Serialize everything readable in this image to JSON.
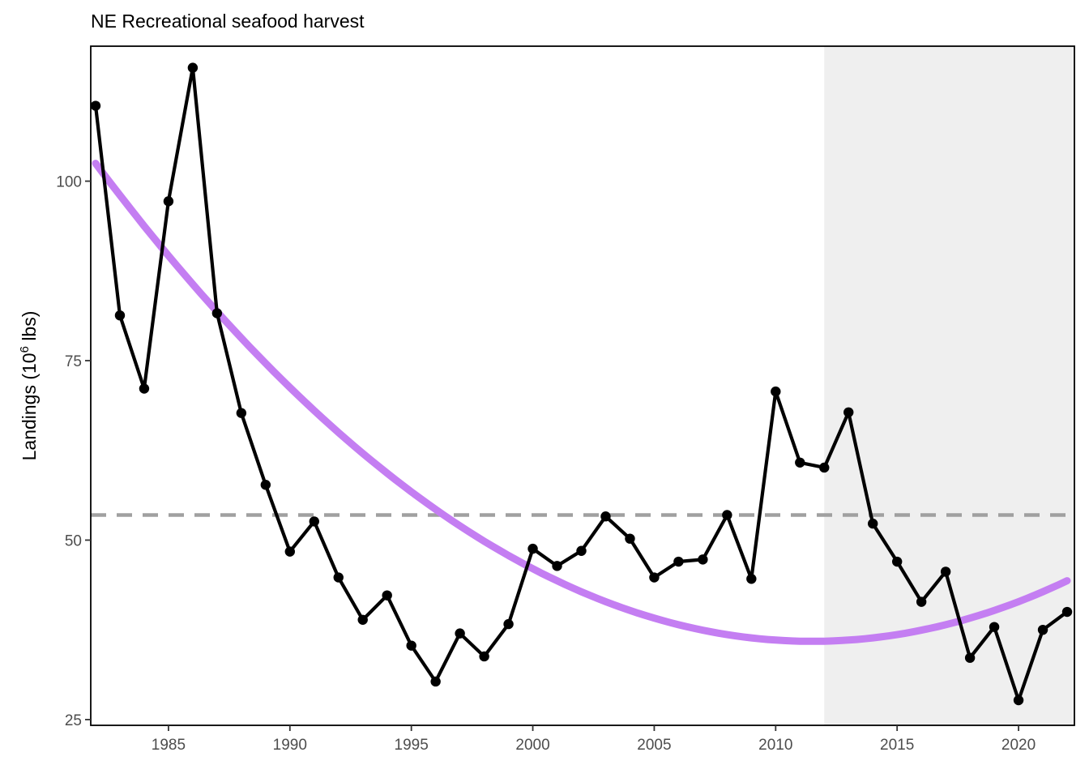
{
  "chart_data": {
    "type": "line",
    "title": "NE Recreational seafood harvest",
    "ylabel_prefix": "Landings (10",
    "ylabel_sup": "6",
    "ylabel_suffix": " lbs)",
    "xlabel": "",
    "xlim": [
      1981.8,
      2022.3
    ],
    "ylim": [
      24.2,
      118.8
    ],
    "x_ticks": [
      1985,
      1990,
      1995,
      2000,
      2005,
      2010,
      2015,
      2020
    ],
    "y_ticks": [
      25,
      50,
      75,
      100
    ],
    "grid": false,
    "legend": "none",
    "shaded_region": {
      "x_start": 2012,
      "x_end": 2022.3,
      "color": "#efefef"
    },
    "reference_line": {
      "y": 53.5,
      "style": "dashed",
      "color": "#a0a0a0"
    },
    "series": [
      {
        "type": "line",
        "color": "#000000",
        "markers": true,
        "x": [
          1982,
          1983,
          1984,
          1985,
          1986,
          1987,
          1988,
          1989,
          1990,
          1991,
          1992,
          1993,
          1994,
          1995,
          1996,
          1997,
          1998,
          1999,
          2000,
          2001,
          2002,
          2003,
          2004,
          2005,
          2006,
          2007,
          2008,
          2009,
          2010,
          2011,
          2012,
          2013,
          2014,
          2015,
          2016,
          2017,
          2018,
          2019,
          2020,
          2021,
          2022
        ],
        "y": [
          110.5,
          81.3,
          71.1,
          97.2,
          115.8,
          81.6,
          67.7,
          57.7,
          48.4,
          52.6,
          44.8,
          38.9,
          42.3,
          35.3,
          30.3,
          37.0,
          33.8,
          38.3,
          48.8,
          46.4,
          48.5,
          53.3,
          50.2,
          44.8,
          47.0,
          47.3,
          53.5,
          44.6,
          70.7,
          60.8,
          60.1,
          67.8,
          52.3,
          47.0,
          41.4,
          45.6,
          33.6,
          37.9,
          27.7,
          37.5,
          40.0
        ]
      },
      {
        "type": "trend",
        "color": "#c47ef2",
        "x_range": [
          1982,
          2022
        ],
        "quadratic_fit": {
          "vertex_x": 2011.5,
          "vertex_y": 35.9,
          "curvature": 0.0765
        }
      }
    ]
  }
}
